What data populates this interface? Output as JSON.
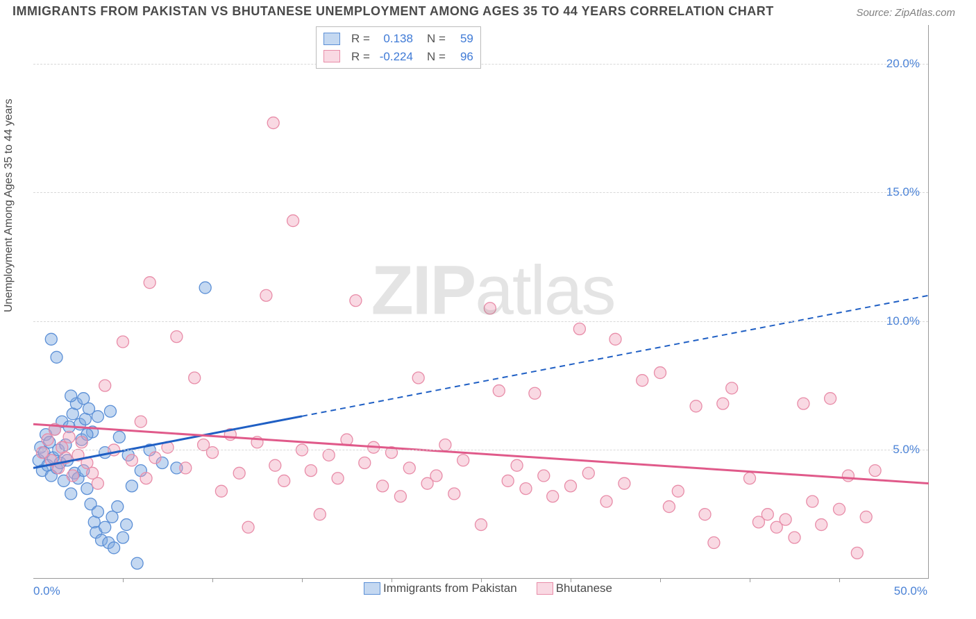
{
  "title": "IMMIGRANTS FROM PAKISTAN VS BHUTANESE UNEMPLOYMENT AMONG AGES 35 TO 44 YEARS CORRELATION CHART",
  "source": "Source: ZipAtlas.com",
  "ylabel": "Unemployment Among Ages 35 to 44 years",
  "watermark_bold": "ZIP",
  "watermark_light": "atlas",
  "chart": {
    "type": "scatter-correlation",
    "background_color": "#ffffff",
    "grid_color": "#d8d8d8",
    "xlim": [
      0,
      50
    ],
    "ylim": [
      0,
      21.5
    ],
    "yticks": [
      {
        "v": 5.0,
        "label": "5.0%"
      },
      {
        "v": 10.0,
        "label": "10.0%"
      },
      {
        "v": 15.0,
        "label": "15.0%"
      },
      {
        "v": 20.0,
        "label": "20.0%"
      }
    ],
    "xtick_minor": [
      5,
      10,
      15,
      20,
      25,
      30,
      35,
      40,
      45
    ],
    "xtick_labels": {
      "min": "0.0%",
      "max": "50.0%"
    },
    "series": [
      {
        "id": "pakistan",
        "label": "Immigrants from Pakistan",
        "color_fill": "rgba(124,168,224,0.45)",
        "color_stroke": "#5b8fd6",
        "trend_color": "#1f5fc4",
        "trend_dash_after": 15,
        "R": "0.138",
        "N": "59",
        "trend": {
          "x1": 0,
          "y1": 4.3,
          "x2": 50,
          "y2": 11.0
        },
        "points": [
          [
            0.3,
            4.6
          ],
          [
            0.4,
            5.1
          ],
          [
            0.5,
            4.2
          ],
          [
            0.6,
            4.9
          ],
          [
            0.7,
            5.6
          ],
          [
            0.8,
            4.4
          ],
          [
            0.9,
            5.3
          ],
          [
            1.0,
            4.0
          ],
          [
            1.1,
            4.7
          ],
          [
            1.2,
            5.8
          ],
          [
            1.3,
            4.3
          ],
          [
            1.4,
            5.0
          ],
          [
            1.5,
            4.5
          ],
          [
            1.6,
            6.1
          ],
          [
            1.7,
            3.8
          ],
          [
            1.8,
            5.2
          ],
          [
            1.9,
            4.6
          ],
          [
            2.0,
            5.9
          ],
          [
            2.1,
            3.3
          ],
          [
            2.2,
            6.4
          ],
          [
            2.3,
            4.1
          ],
          [
            2.4,
            6.8
          ],
          [
            2.5,
            3.9
          ],
          [
            2.6,
            6.0
          ],
          [
            2.7,
            5.4
          ],
          [
            2.8,
            4.2
          ],
          [
            2.9,
            6.2
          ],
          [
            3.0,
            3.5
          ],
          [
            3.1,
            6.6
          ],
          [
            3.2,
            2.9
          ],
          [
            3.3,
            5.7
          ],
          [
            3.4,
            2.2
          ],
          [
            3.5,
            1.8
          ],
          [
            3.6,
            2.6
          ],
          [
            3.8,
            1.5
          ],
          [
            4.0,
            2.0
          ],
          [
            4.2,
            1.4
          ],
          [
            4.4,
            2.4
          ],
          [
            4.5,
            1.2
          ],
          [
            4.7,
            2.8
          ],
          [
            5.0,
            1.6
          ],
          [
            5.2,
            2.1
          ],
          [
            5.5,
            3.6
          ],
          [
            5.8,
            0.6
          ],
          [
            1.0,
            9.3
          ],
          [
            1.3,
            8.6
          ],
          [
            2.1,
            7.1
          ],
          [
            2.8,
            7.0
          ],
          [
            3.6,
            6.3
          ],
          [
            4.3,
            6.5
          ],
          [
            4.8,
            5.5
          ],
          [
            5.3,
            4.8
          ],
          [
            6.0,
            4.2
          ],
          [
            6.5,
            5.0
          ],
          [
            7.2,
            4.5
          ],
          [
            8.0,
            4.3
          ],
          [
            9.6,
            11.3
          ],
          [
            3.0,
            5.6
          ],
          [
            4.0,
            4.9
          ]
        ]
      },
      {
        "id": "bhutanese",
        "label": "Bhutanese",
        "color_fill": "rgba(240,160,185,0.40)",
        "color_stroke": "#e88ca8",
        "trend_color": "#e05a8a",
        "trend_dash_after": 999,
        "R": "-0.224",
        "N": "96",
        "trend": {
          "x1": 0,
          "y1": 6.0,
          "x2": 50,
          "y2": 3.7
        },
        "points": [
          [
            0.5,
            4.9
          ],
          [
            0.8,
            5.4
          ],
          [
            1.0,
            4.6
          ],
          [
            1.2,
            5.8
          ],
          [
            1.4,
            4.3
          ],
          [
            1.6,
            5.1
          ],
          [
            1.8,
            4.7
          ],
          [
            2.0,
            5.5
          ],
          [
            2.2,
            4.0
          ],
          [
            2.5,
            4.8
          ],
          [
            2.7,
            5.3
          ],
          [
            3.0,
            4.5
          ],
          [
            3.3,
            4.1
          ],
          [
            3.6,
            3.7
          ],
          [
            4.0,
            7.5
          ],
          [
            4.5,
            5.0
          ],
          [
            5.0,
            9.2
          ],
          [
            5.5,
            4.6
          ],
          [
            6.0,
            6.1
          ],
          [
            6.3,
            3.9
          ],
          [
            6.5,
            11.5
          ],
          [
            6.8,
            4.7
          ],
          [
            7.5,
            5.1
          ],
          [
            8.0,
            9.4
          ],
          [
            8.5,
            4.3
          ],
          [
            9.0,
            7.8
          ],
          [
            9.5,
            5.2
          ],
          [
            10.0,
            4.9
          ],
          [
            10.5,
            3.4
          ],
          [
            11.0,
            5.6
          ],
          [
            11.5,
            4.1
          ],
          [
            12.0,
            2.0
          ],
          [
            12.5,
            5.3
          ],
          [
            13.0,
            11.0
          ],
          [
            13.4,
            17.7
          ],
          [
            13.5,
            4.4
          ],
          [
            14.0,
            3.8
          ],
          [
            14.5,
            13.9
          ],
          [
            15.0,
            5.0
          ],
          [
            15.5,
            4.2
          ],
          [
            16.0,
            2.5
          ],
          [
            16.5,
            4.8
          ],
          [
            17.0,
            3.9
          ],
          [
            17.5,
            5.4
          ],
          [
            18.0,
            10.8
          ],
          [
            18.5,
            4.5
          ],
          [
            19.0,
            5.1
          ],
          [
            19.5,
            3.6
          ],
          [
            20.0,
            4.9
          ],
          [
            20.5,
            3.2
          ],
          [
            21.0,
            4.3
          ],
          [
            21.5,
            7.8
          ],
          [
            22.0,
            3.7
          ],
          [
            22.5,
            4.0
          ],
          [
            23.0,
            5.2
          ],
          [
            23.5,
            3.3
          ],
          [
            24.0,
            4.6
          ],
          [
            25.0,
            2.1
          ],
          [
            25.5,
            10.5
          ],
          [
            26.0,
            7.3
          ],
          [
            26.5,
            3.8
          ],
          [
            27.0,
            4.4
          ],
          [
            27.5,
            3.5
          ],
          [
            28.0,
            7.2
          ],
          [
            28.5,
            4.0
          ],
          [
            29.0,
            3.2
          ],
          [
            30.0,
            3.6
          ],
          [
            30.5,
            9.7
          ],
          [
            31.0,
            4.1
          ],
          [
            32.0,
            3.0
          ],
          [
            32.5,
            9.3
          ],
          [
            33.0,
            3.7
          ],
          [
            34.0,
            7.7
          ],
          [
            35.0,
            8.0
          ],
          [
            35.5,
            2.8
          ],
          [
            36.0,
            3.4
          ],
          [
            37.0,
            6.7
          ],
          [
            37.5,
            2.5
          ],
          [
            38.0,
            1.4
          ],
          [
            38.5,
            6.8
          ],
          [
            39.0,
            7.4
          ],
          [
            40.0,
            3.9
          ],
          [
            40.5,
            2.2
          ],
          [
            41.0,
            2.5
          ],
          [
            41.5,
            2.0
          ],
          [
            42.0,
            2.3
          ],
          [
            42.5,
            1.6
          ],
          [
            43.0,
            6.8
          ],
          [
            43.5,
            3.0
          ],
          [
            44.0,
            2.1
          ],
          [
            44.5,
            7.0
          ],
          [
            45.0,
            2.7
          ],
          [
            45.5,
            4.0
          ],
          [
            46.0,
            1.0
          ],
          [
            46.5,
            2.4
          ],
          [
            47.0,
            4.2
          ]
        ]
      }
    ]
  },
  "legend_top_labels": {
    "R": "R =",
    "N": "N ="
  }
}
